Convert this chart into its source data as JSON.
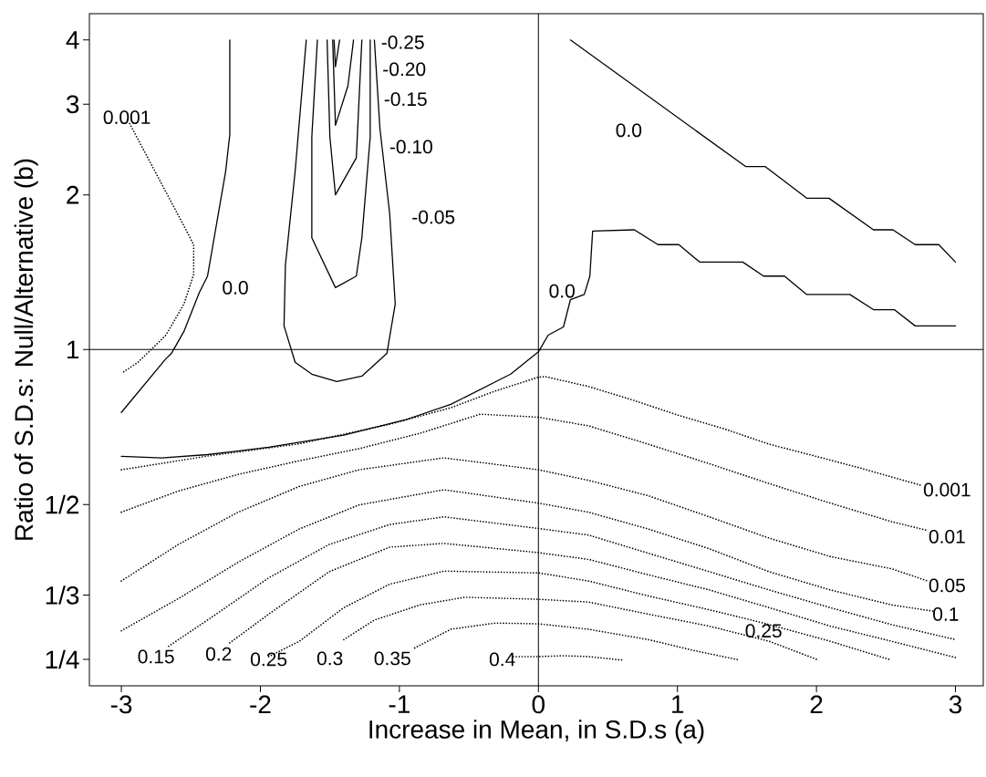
{
  "chart_data": {
    "type": "line",
    "xlabel": "Increase in Mean, in S.D.s (a)",
    "ylabel": "Ratio of S.D.s:  Null/Alternative (b)",
    "xlim": [
      -3.23,
      3.2
    ],
    "ylim": [
      0.222,
      4.5
    ],
    "log": "y",
    "xticks": [
      -3,
      -2,
      -1,
      0,
      1,
      2,
      3
    ],
    "yticks": [
      {
        "value": 0.25,
        "label": "1/4"
      },
      {
        "value": 0.3333,
        "label": "1/3"
      },
      {
        "value": 0.5,
        "label": "1/2"
      },
      1,
      2,
      3,
      4
    ],
    "marker": "none",
    "series": [
      {
        "color": "#000000",
        "line_style": "dotted",
        "x": [
          -2.94,
          -2.53,
          -2.48,
          -2.48,
          -2.55,
          -2.68,
          -2.88,
          -2.99
        ],
        "values": [
          2.75,
          1.7,
          1.6,
          1.4,
          1.226,
          1.067,
          0.945,
          0.903
        ]
      },
      {
        "color": "#000000",
        "line_style": "solid",
        "x": [
          -2.22,
          -2.22,
          -2.25,
          -2.38,
          -2.44,
          -2.55,
          -2.64,
          -2.68,
          -3.0
        ],
        "values": [
          4.0,
          2.62,
          2.22,
          1.39,
          1.29,
          1.085,
          0.983,
          0.96,
          0.755
        ]
      },
      {
        "color": "#000000",
        "line_style": "solid",
        "x": [
          -1.67,
          -1.75,
          -1.82,
          -1.83,
          -1.75,
          -1.63,
          -1.45,
          -1.27,
          -1.09,
          -1.03,
          -1.07,
          -1.14,
          -1.18
        ],
        "values": [
          4.0,
          2.22,
          1.46,
          1.112,
          0.945,
          0.896,
          0.867,
          0.888,
          0.983,
          1.226,
          1.84,
          2.69,
          4.0
        ]
      },
      {
        "color": "#000000",
        "line_style": "solid",
        "x": [
          -1.59,
          -1.63,
          -1.63,
          -1.46,
          -1.31,
          -1.27,
          -1.21,
          -1.21
        ],
        "values": [
          4.0,
          2.59,
          1.65,
          1.32,
          1.39,
          1.65,
          2.59,
          4.0
        ]
      },
      {
        "color": "#000000",
        "line_style": "solid",
        "x": [
          -1.52,
          -1.5,
          -1.46,
          -1.31,
          -1.27
        ],
        "values": [
          4.0,
          2.59,
          2.0,
          2.36,
          4.0
        ]
      },
      {
        "color": "#000000",
        "line_style": "solid",
        "x": [
          -1.48,
          -1.46,
          -1.37,
          -1.33
        ],
        "values": [
          4.0,
          2.73,
          3.26,
          4.0
        ]
      },
      {
        "color": "#000000",
        "line_style": "solid",
        "x": [
          -1.47,
          -1.46,
          -1.43
        ],
        "values": [
          4.0,
          3.55,
          4.0
        ]
      },
      {
        "color": "#000000",
        "line_style": "solid",
        "x": [
          0.23,
          1.49,
          1.63,
          1.93,
          2.09,
          2.41,
          2.55,
          2.71,
          2.88,
          3.0
        ],
        "values": [
          4.0,
          2.27,
          2.27,
          1.97,
          1.97,
          1.71,
          1.71,
          1.6,
          1.6,
          1.48
        ]
      },
      {
        "color": "#000000",
        "line_style": "solid",
        "x": [
          -3.0,
          -2.71,
          -2.38,
          -1.94,
          -1.4,
          -0.96,
          -0.63,
          -0.2,
          0,
          0.07,
          0.18,
          0.23,
          0.33,
          0.37,
          0.39,
          0.69,
          0.86,
          1.01,
          1.16,
          1.47,
          1.62,
          1.77,
          1.93,
          2.24,
          2.41,
          2.56,
          2.71,
          3.0
        ],
        "values": [
          0.62,
          0.616,
          0.625,
          0.646,
          0.682,
          0.73,
          0.783,
          0.896,
          0.99,
          1.067,
          1.107,
          1.25,
          1.28,
          1.39,
          1.7,
          1.71,
          1.6,
          1.6,
          1.48,
          1.48,
          1.39,
          1.39,
          1.28,
          1.28,
          1.196,
          1.196,
          1.112,
          1.112
        ]
      },
      {
        "color": "#000000",
        "line_style": "dotted",
        "x": [
          -3.0,
          -2.38,
          -1.72,
          -1.07,
          -0.63,
          -0.31,
          0,
          0.05,
          0.36,
          0.68,
          1.01,
          1.34,
          1.66,
          1.99,
          2.32,
          2.75
        ],
        "values": [
          0.584,
          0.621,
          0.656,
          0.716,
          0.771,
          0.831,
          0.884,
          0.886,
          0.848,
          0.798,
          0.745,
          0.701,
          0.655,
          0.621,
          0.588,
          0.545
        ]
      },
      {
        "color": "#000000",
        "line_style": "dotted",
        "x": [
          -3.0,
          -2.59,
          -2.16,
          -1.72,
          -1.29,
          -0.85,
          -0.42,
          0,
          0.36,
          0.79,
          1.23,
          1.66,
          2.1,
          2.54,
          2.8
        ],
        "values": [
          0.483,
          0.531,
          0.572,
          0.608,
          0.642,
          0.688,
          0.749,
          0.739,
          0.711,
          0.655,
          0.6,
          0.549,
          0.503,
          0.463,
          0.445
        ]
      },
      {
        "color": "#000000",
        "line_style": "dotted",
        "x": [
          -3.0,
          -2.59,
          -2.16,
          -1.72,
          -1.29,
          -0.68,
          0,
          0.36,
          0.79,
          1.23,
          1.66,
          2.1,
          2.54,
          2.8
        ],
        "values": [
          0.355,
          0.418,
          0.483,
          0.542,
          0.584,
          0.616,
          0.584,
          0.557,
          0.52,
          0.473,
          0.43,
          0.396,
          0.375,
          0.355
        ]
      },
      {
        "color": "#000000",
        "line_style": "dotted",
        "x": [
          -3.0,
          -2.59,
          -2.16,
          -1.72,
          -1.29,
          -0.68,
          0,
          0.36,
          0.79,
          1.23,
          1.66,
          2.1,
          2.54,
          2.84
        ],
        "values": [
          0.284,
          0.328,
          0.386,
          0.448,
          0.499,
          0.534,
          0.503,
          0.483,
          0.448,
          0.41,
          0.37,
          0.341,
          0.319,
          0.31
        ]
      },
      {
        "color": "#000000",
        "line_style": "dotted",
        "x": [
          -2.66,
          -2.38,
          -1.94,
          -1.505,
          -1.07,
          -0.68,
          0,
          0.36,
          0.79,
          1.23,
          1.66,
          2.1,
          2.54,
          3.0
        ],
        "values": [
          0.265,
          0.298,
          0.36,
          0.418,
          0.457,
          0.473,
          0.449,
          0.436,
          0.402,
          0.37,
          0.341,
          0.315,
          0.292,
          0.273
        ]
      },
      {
        "color": "#000000",
        "line_style": "dotted",
        "x": [
          -2.22,
          -1.94,
          -1.505,
          -1.07,
          -0.68,
          0,
          0.36,
          0.79,
          1.23,
          1.66,
          2.1,
          2.54,
          3.0
        ],
        "values": [
          0.269,
          0.306,
          0.37,
          0.413,
          0.42,
          0.403,
          0.391,
          0.365,
          0.341,
          0.315,
          0.29,
          0.271,
          0.252
        ]
      },
      {
        "color": "#000000",
        "line_style": "dotted",
        "x": [
          -1.94,
          -1.72,
          -1.4,
          -1.07,
          -0.68,
          0,
          0.36,
          0.79,
          1.23,
          1.62,
          2.1,
          2.52
        ],
        "values": [
          0.253,
          0.271,
          0.315,
          0.35,
          0.371,
          0.368,
          0.355,
          0.332,
          0.312,
          0.294,
          0.271,
          0.25
        ]
      },
      {
        "color": "#000000",
        "line_style": "dotted",
        "x": [
          -1.4,
          -1.18,
          -0.85,
          -0.53,
          0,
          0.36,
          0.79,
          1.23,
          1.66,
          2.0
        ],
        "values": [
          0.273,
          0.298,
          0.319,
          0.33,
          0.327,
          0.323,
          0.306,
          0.29,
          0.271,
          0.25
        ]
      },
      {
        "color": "#000000",
        "line_style": "dotted",
        "x": [
          -0.89,
          -0.63,
          -0.31,
          0,
          0.36,
          0.79,
          1.12,
          1.45
        ],
        "values": [
          0.263,
          0.286,
          0.294,
          0.293,
          0.286,
          0.273,
          0.26,
          0.249
        ]
      },
      {
        "color": "#000000",
        "line_style": "dotted",
        "x": [
          -0.18,
          0,
          0.18,
          0.36,
          0.61
        ],
        "values": [
          0.253,
          0.253,
          0.254,
          0.253,
          0.249
        ]
      }
    ],
    "ref_lines": [
      {
        "axis": "x",
        "value": 0,
        "color": "#000000"
      },
      {
        "axis": "y",
        "value": 1,
        "color": "#000000"
      }
    ],
    "annotations": [
      "0.001",
      "0.0",
      "-0.25",
      "-0.20",
      "-0.15",
      "-0.10",
      "-0.05",
      "0.0",
      "0.0",
      "0.001",
      "0.01",
      "0.05",
      "0.1",
      "0.25",
      "0.15",
      "0.2",
      "0.25",
      "0.3",
      "0.35",
      "0.4"
    ]
  }
}
